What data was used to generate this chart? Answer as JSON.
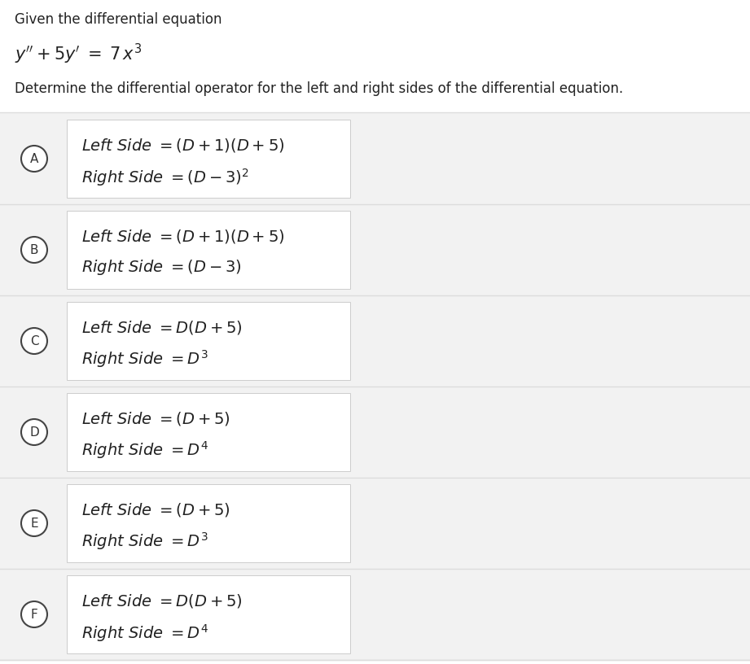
{
  "title_line1": "Given the differential equation",
  "subtitle": "Determine the differential operator for the left and right sides of the differential equation.",
  "options": [
    {
      "label": "A",
      "left_latex": "Left Side $= (D + 1)(D + 5)$",
      "right_latex": "Right Side $= (D - 3)^2$"
    },
    {
      "label": "B",
      "left_latex": "Left Side $= (D + 1)(D + 5)$",
      "right_latex": "Right Side $= (D - 3)$"
    },
    {
      "label": "C",
      "left_latex": "Left Side $= D(D+5)$",
      "right_latex": "Right Side $= D^3$"
    },
    {
      "label": "D",
      "left_latex": "Left Side $= (D+5)$",
      "right_latex": "Right Side $= D^4$"
    },
    {
      "label": "E",
      "left_latex": "Left Side $= (D+5)$",
      "right_latex": "Right Side $= D^3$"
    },
    {
      "label": "F",
      "left_latex": "Left Side $= D(D+5)$",
      "right_latex": "Right Side $= D^4$"
    }
  ],
  "fig_width": 9.21,
  "fig_height": 8.16,
  "dpi": 100,
  "white": "#ffffff",
  "light_gray": "#f2f2f2",
  "option_box_color": "#f7f7f7",
  "inner_box_color": "#ffffff",
  "border_color": "#cccccc",
  "sep_color": "#dddddd",
  "circle_color": "#ffffff",
  "circle_edge": "#444444",
  "text_color": "#222222",
  "label_color": "#333333",
  "header_fontsize": 12,
  "eq_fontsize": 15,
  "subtitle_fontsize": 12,
  "option_fontsize": 14,
  "label_fontsize": 11
}
